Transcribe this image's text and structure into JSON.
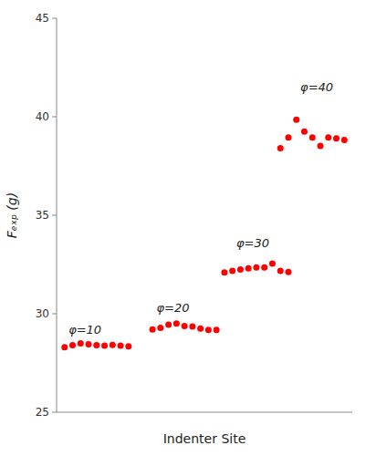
{
  "chart_data": {
    "type": "scatter",
    "title": "",
    "xlabel": "Indenter Site",
    "ylabel": "Fₑₓₚ (g)",
    "xlim": [
      0,
      37
    ],
    "ylim": [
      25,
      45
    ],
    "yticks": [
      25,
      30,
      35,
      40,
      45
    ],
    "tick_labels": "y",
    "grid": false,
    "color": "red",
    "marker": "dot",
    "series": [
      {
        "x": [
          1,
          2,
          3,
          4,
          5,
          6,
          7,
          8,
          9
        ],
        "values": [
          28.3,
          28.4,
          28.5,
          28.45,
          28.4,
          28.38,
          28.42,
          28.38,
          28.35
        ]
      },
      {
        "x": [
          12,
          13,
          14,
          15,
          16,
          17,
          18,
          19,
          20
        ],
        "values": [
          29.2,
          29.28,
          29.45,
          29.5,
          29.38,
          29.35,
          29.25,
          29.18,
          29.18
        ]
      },
      {
        "x": [
          21,
          22,
          23,
          24,
          25,
          26,
          27,
          28,
          29
        ],
        "values": [
          32.1,
          32.18,
          32.25,
          32.3,
          32.35,
          32.35,
          32.55,
          32.18,
          32.12
        ]
      },
      {
        "x": [
          28,
          29,
          30,
          31,
          32,
          33,
          34,
          35,
          36
        ],
        "values": [
          38.4,
          38.95,
          39.85,
          39.25,
          38.95,
          38.52,
          38.95,
          38.9,
          38.82
        ]
      }
    ],
    "annotations": [
      {
        "text": "φ=10",
        "x": 1.5,
        "y": 29.0
      },
      {
        "text": "φ=20",
        "x": 12.5,
        "y": 30.1
      },
      {
        "text": "φ=30",
        "x": 22.5,
        "y": 33.4
      },
      {
        "text": "φ=40",
        "x": 30.5,
        "y": 41.3
      }
    ]
  }
}
